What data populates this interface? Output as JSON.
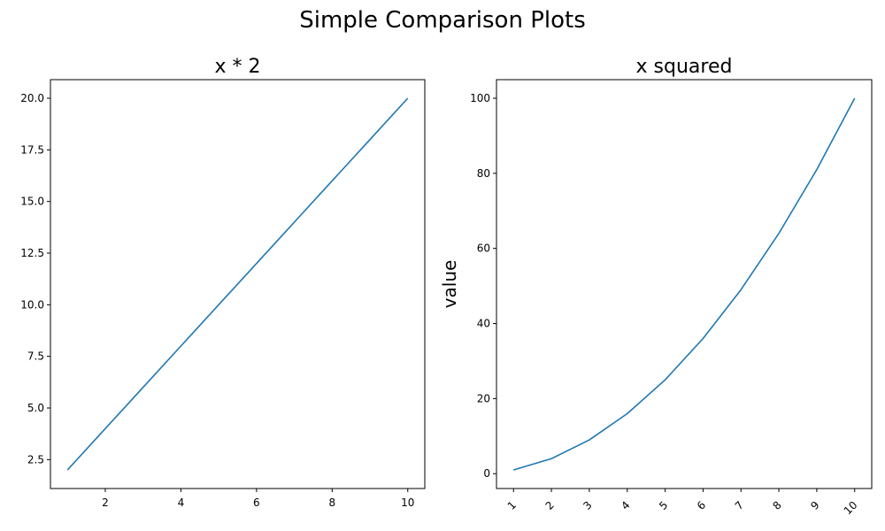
{
  "figure": {
    "suptitle": "Simple Comparison Plots"
  },
  "chart_data": [
    {
      "type": "line",
      "title": "x * 2",
      "xlabel": "",
      "ylabel": "",
      "xlim": [
        0.55,
        10.45
      ],
      "ylim": [
        1.1,
        20.9
      ],
      "xticks": [
        2,
        4,
        6,
        8,
        10
      ],
      "xtick_labels": [
        "2",
        "4",
        "6",
        "8",
        "10"
      ],
      "xtick_rotation": 0,
      "yticks": [
        2.5,
        5.0,
        7.5,
        10.0,
        12.5,
        15.0,
        17.5,
        20.0
      ],
      "ytick_labels": [
        "2.5",
        "5.0",
        "7.5",
        "10.0",
        "12.5",
        "15.0",
        "17.5",
        "20.0"
      ],
      "series": [
        {
          "x": [
            1,
            2,
            3,
            4,
            5,
            6,
            7,
            8,
            9,
            10
          ],
          "y": [
            2,
            4,
            6,
            8,
            10,
            12,
            14,
            16,
            18,
            20
          ],
          "color": "#1f77b4"
        }
      ],
      "grid": false
    },
    {
      "type": "line",
      "title": "x squared",
      "xlabel": "",
      "ylabel": "value",
      "xlim": [
        0.55,
        10.45
      ],
      "ylim": [
        -3.95,
        104.95
      ],
      "xticks": [
        1,
        2,
        3,
        4,
        5,
        6,
        7,
        8,
        9,
        10
      ],
      "xtick_labels": [
        "1",
        "2",
        "3",
        "4",
        "5",
        "6",
        "7",
        "8",
        "9",
        "10"
      ],
      "xtick_rotation": 45,
      "yticks": [
        0,
        20,
        40,
        60,
        80,
        100
      ],
      "ytick_labels": [
        "0",
        "20",
        "40",
        "60",
        "80",
        "100"
      ],
      "series": [
        {
          "x": [
            1,
            2,
            3,
            4,
            5,
            6,
            7,
            8,
            9,
            10
          ],
          "y": [
            1,
            4,
            9,
            16,
            25,
            36,
            49,
            64,
            81,
            100
          ],
          "color": "#1f77b4"
        }
      ],
      "grid": false
    }
  ]
}
